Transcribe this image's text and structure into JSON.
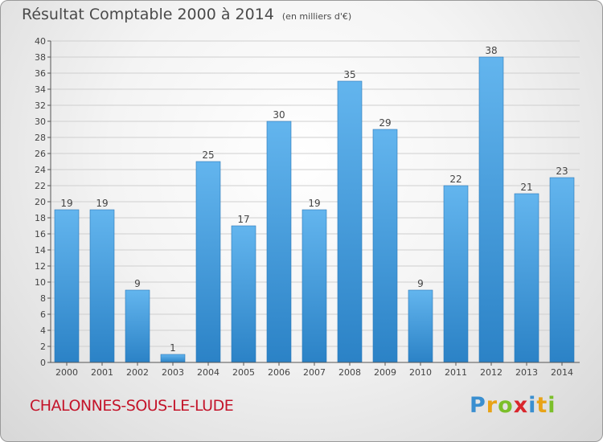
{
  "title": "Résultat Comptable 2000 à 2014",
  "subtitle": "(en milliers d'€)",
  "commune": "CHALONNES-SOUS-LE-LUDE",
  "logo": {
    "letters": [
      "P",
      "r",
      "o",
      "x",
      "i",
      "t",
      "i"
    ],
    "colors": [
      "#3a8fd0",
      "#e8a317",
      "#7bbf2a",
      "#d9262c",
      "#3a8fd0",
      "#e8a317",
      "#7bbf2a"
    ]
  },
  "colors": {
    "bar_top": "#63b5ee",
    "bar_bottom": "#2b82c6",
    "axis": "#555555",
    "grid": "#cfcfcf",
    "text": "#444444",
    "commune": "#c4142a"
  },
  "chart_data": {
    "type": "bar",
    "title": "Résultat Comptable 2000 à 2014",
    "ylabel": "(en milliers d'€)",
    "xlabel": "",
    "categories": [
      "2000",
      "2001",
      "2002",
      "2003",
      "2004",
      "2005",
      "2006",
      "2007",
      "2008",
      "2009",
      "2010",
      "2011",
      "2012",
      "2013",
      "2014"
    ],
    "values": [
      19,
      19,
      9,
      1,
      25,
      17,
      30,
      19,
      35,
      29,
      9,
      22,
      38,
      21,
      23
    ],
    "ylim": [
      0,
      40
    ],
    "yticks": [
      0,
      2,
      4,
      6,
      8,
      10,
      12,
      14,
      16,
      18,
      20,
      22,
      24,
      26,
      28,
      30,
      32,
      34,
      36,
      38,
      40
    ],
    "grid": true
  }
}
